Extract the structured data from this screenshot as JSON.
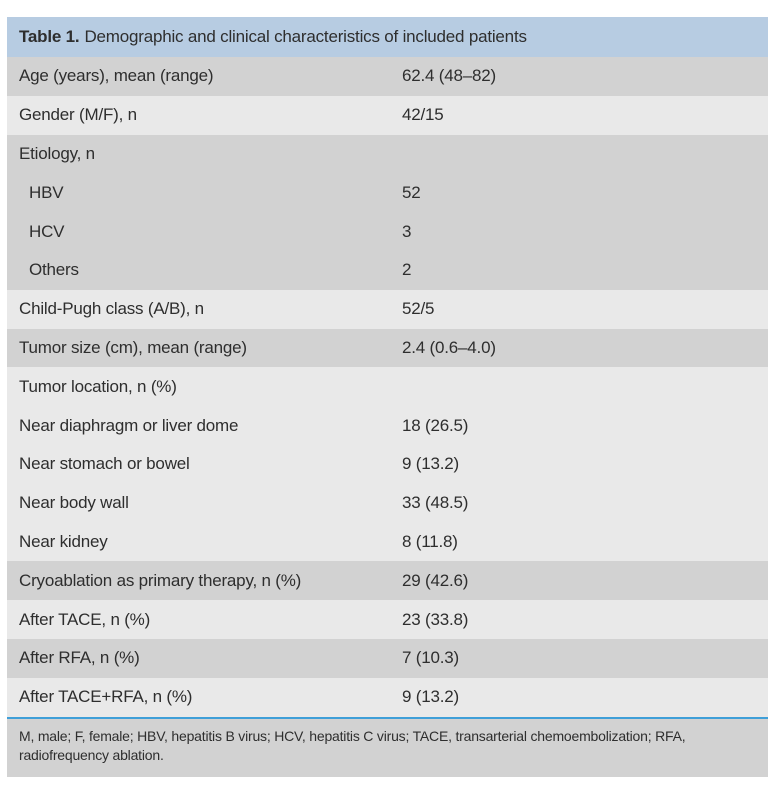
{
  "table": {
    "title_label": "Table 1.",
    "title_text": "Demographic and clinical characteristics of included patients",
    "header_bg": "#b7cce2",
    "row_dark_bg": "#d2d2d2",
    "row_light_bg": "#e9e9e9",
    "separator_color": "#3f9fd8",
    "footnote_bg": "#d2d2d2",
    "text_color": "#2e2e2e",
    "rows": [
      {
        "label": "Age (years), mean (range)",
        "value": "62.4 (48–82)",
        "shade": "dark",
        "indent": false
      },
      {
        "label": "Gender (M/F), n",
        "value": "42/15",
        "shade": "light",
        "indent": false
      },
      {
        "label": "Etiology, n",
        "value": "",
        "shade": "dark",
        "indent": false
      },
      {
        "label": "HBV",
        "value": "52",
        "shade": "dark",
        "indent": true
      },
      {
        "label": "HCV",
        "value": "3",
        "shade": "dark",
        "indent": true
      },
      {
        "label": "Others",
        "value": "2",
        "shade": "dark",
        "indent": true
      },
      {
        "label": "Child-Pugh class (A/B), n",
        "value": "52/5",
        "shade": "light",
        "indent": false
      },
      {
        "label": "Tumor size (cm), mean (range)",
        "value": "2.4 (0.6–4.0)",
        "shade": "dark",
        "indent": false
      },
      {
        "label": "Tumor location, n (%)",
        "value": "",
        "shade": "light",
        "indent": false
      },
      {
        "label": "Near diaphragm or liver dome",
        "value": "18 (26.5)",
        "shade": "light",
        "indent": false
      },
      {
        "label": "Near stomach or bowel",
        "value": "9 (13.2)",
        "shade": "light",
        "indent": false
      },
      {
        "label": "Near body wall",
        "value": "33 (48.5)",
        "shade": "light",
        "indent": false
      },
      {
        "label": "Near kidney",
        "value": "8 (11.8)",
        "shade": "light",
        "indent": false
      },
      {
        "label": "Cryoablation as primary therapy, n (%)",
        "value": "29 (42.6)",
        "shade": "dark",
        "indent": false
      },
      {
        "label": "After TACE, n (%)",
        "value": "23 (33.8)",
        "shade": "light",
        "indent": false
      },
      {
        "label": "After RFA, n (%)",
        "value": "7 (10.3)",
        "shade": "dark",
        "indent": false
      },
      {
        "label": "After TACE+RFA, n (%)",
        "value": "9 (13.2)",
        "shade": "light",
        "indent": false
      }
    ],
    "footnote": "M, male; F, female; HBV, hepatitis B virus; HCV, hepatitis C virus; TACE, transarterial chemoembolization; RFA, radiofrequency ablation."
  }
}
